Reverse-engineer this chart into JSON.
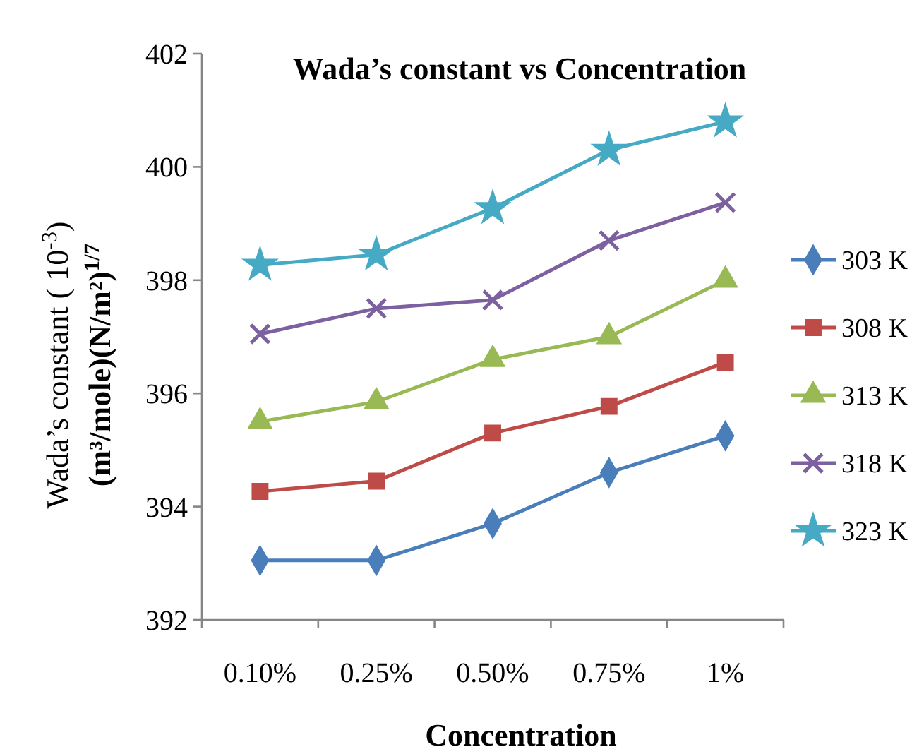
{
  "chart_data": {
    "type": "line",
    "title": "Wada’s constant vs Concentration",
    "xlabel": "Concentration",
    "ylabel": "Wada’s constant ( 10$^{-3}$)\n(m³/mole)(N/m²)$^{1/7}$",
    "categories": [
      "0.10%",
      "0.25%",
      "0.50%",
      "0.75%",
      "1%"
    ],
    "ylim": [
      392,
      402
    ],
    "yticks": [
      392,
      394,
      396,
      398,
      400,
      402
    ],
    "grid": false,
    "legend": "right",
    "line_style": "solid",
    "series": [
      {
        "name": "303 K",
        "color": "#4a7ebb",
        "marker": "diamond",
        "values": [
          393.05,
          393.05,
          393.7,
          394.6,
          395.25
        ]
      },
      {
        "name": "308 K",
        "color": "#be4b48",
        "marker": "square",
        "values": [
          394.27,
          394.45,
          395.3,
          395.77,
          396.55
        ]
      },
      {
        "name": "313 K",
        "color": "#98b954",
        "marker": "triangle",
        "values": [
          395.5,
          395.85,
          396.6,
          397.0,
          398.0
        ]
      },
      {
        "name": "318 K",
        "color": "#7d60a0",
        "marker": "cross",
        "values": [
          397.05,
          397.5,
          397.65,
          398.7,
          399.37
        ]
      },
      {
        "name": "323 K",
        "color": "#46aac5",
        "marker": "star",
        "values": [
          398.27,
          398.45,
          399.27,
          400.3,
          400.8
        ]
      }
    ]
  }
}
